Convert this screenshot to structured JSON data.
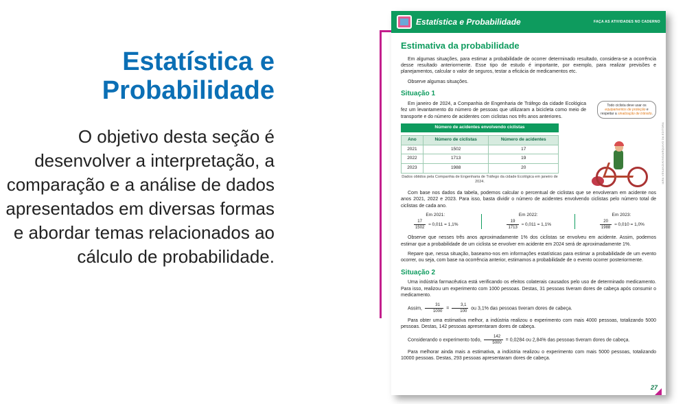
{
  "left": {
    "title_line1": "Estatística e",
    "title_line2": "Probabilidade",
    "body": "O objetivo desta seção é desenvolver a interpretação, a comparação e a análise de dados apresentados em diversas formas e abordar temas relacionados ao cálculo de probabilidade."
  },
  "header": {
    "title": "Estatística e Probabilidade",
    "right": "FAÇA AS ATIVIDADES NO CADERNO"
  },
  "colors": {
    "accent_blue": "#0b6fb5",
    "accent_green": "#0e9b5e",
    "connector": "#c31e8c"
  },
  "page": {
    "main_title": "Estimativa da probabilidade",
    "intro1": "Em algumas situações, para estimar a probabilidade de ocorrer determinado resultado, considera-se a ocorrência desse resultado anteriormente. Esse tipo de estudo é importante, por exemplo, para realizar previsões e planejamentos, calcular o valor de seguros, testar a eficácia de medicamentos etc.",
    "intro2": "Observe algumas situações.",
    "situ1_title": "Situação 1",
    "situ1_p1": "Em janeiro de 2024, a Companhia de Engenharia de Tráfego da cidade Ecológica fez um levantamento do número de pessoas que utilizaram a bicicleta como meio de transporte e do número de acidentes com ciclistas nos três anos anteriores.",
    "speech_plain1": "Todo ciclista deve usar os ",
    "speech_orange1": "equipamentos de proteção",
    "speech_plain2": " e respeitar a ",
    "speech_orange2": "sinalização de trânsito",
    "speech_plain3": ".",
    "credit": "IARA VENANZI/KINO/ARQUIVO DA EDITORA",
    "table_title": "Número de acidentes envolvendo ciclistas",
    "table_cols": [
      "Ano",
      "Número de ciclistas",
      "Número de acidentes"
    ],
    "table_rows": [
      [
        "2021",
        "1502",
        "17"
      ],
      [
        "2022",
        "1713",
        "19"
      ],
      [
        "2023",
        "1988",
        "20"
      ]
    ],
    "table_source": "Dados obtidos pela Companhia de Engenharia de Tráfego da cidade Ecológica em janeiro de 2024.",
    "situ1_p2": "Com base nos dados da tabela, podemos calcular o percentual de ciclistas que se envolveram em acidente nos anos 2021, 2022 e 2023. Para isso, basta dividir o número de acidentes envolvendo ciclistas pelo número total de ciclistas de cada ano.",
    "calc_labels": [
      "Em 2021:",
      "Em 2022:",
      "Em 2023:"
    ],
    "calc": [
      {
        "num": "17",
        "den": "1502",
        "approx": "≈ 0,011 = 1,1%"
      },
      {
        "num": "19",
        "den": "1713",
        "approx": "≈ 0,011 = 1,1%"
      },
      {
        "num": "20",
        "den": "1988",
        "approx": "≈ 0,010 = 1,0%"
      }
    ],
    "situ1_p3": "Observe que nesses três anos aproximadamente 1% dos ciclistas se envolveu em acidente. Assim, podemos estimar que a probabilidade de um ciclista se envolver em acidente em 2024 será de aproximadamente 1%.",
    "situ1_p4": "Repare que, nessa situação, baseamo-nos em informações estatísticas para estimar a probabilidade de um evento ocorrer, ou seja, com base na ocorrência anterior, estimamos a probabilidade de o evento ocorrer posteriormente.",
    "situ2_title": "Situação 2",
    "situ2_p1": "Uma indústria farmacêutica está verificando os efeitos colaterais causados pelo uso de determinado medicamento. Para isso, realizou um experimento com 1000 pessoas. Destas, 31 pessoas tiveram dores de cabeça após consumir o medicamento.",
    "situ2_calc1_pre": "Assim, ",
    "situ2_calc1": {
      "num1": "31",
      "den1": "1000",
      "num2": "3,1",
      "den2": "100",
      "tail": " ou 3,1% das pessoas tiveram dores de cabeça."
    },
    "situ2_p2": "Para obter uma estimativa melhor, a indústria realizou o experimento com mais 4000 pessoas, totalizando 5000 pessoas. Destas, 142 pessoas apresentaram dores de cabeça.",
    "situ2_calc2_pre": "Considerando o experimento todo, ",
    "situ2_calc2": {
      "num": "142",
      "den": "5000",
      "tail": " = 0,0284 ou 2,84% das pessoas tiveram dores de cabeça."
    },
    "situ2_p3": "Para melhorar ainda mais a estimativa, a indústria realizou o experimento com mais 5000 pessoas, totalizando 10000 pessoas. Destas, 293 pessoas apresentaram dores de cabeça.",
    "pagenum": "27"
  }
}
